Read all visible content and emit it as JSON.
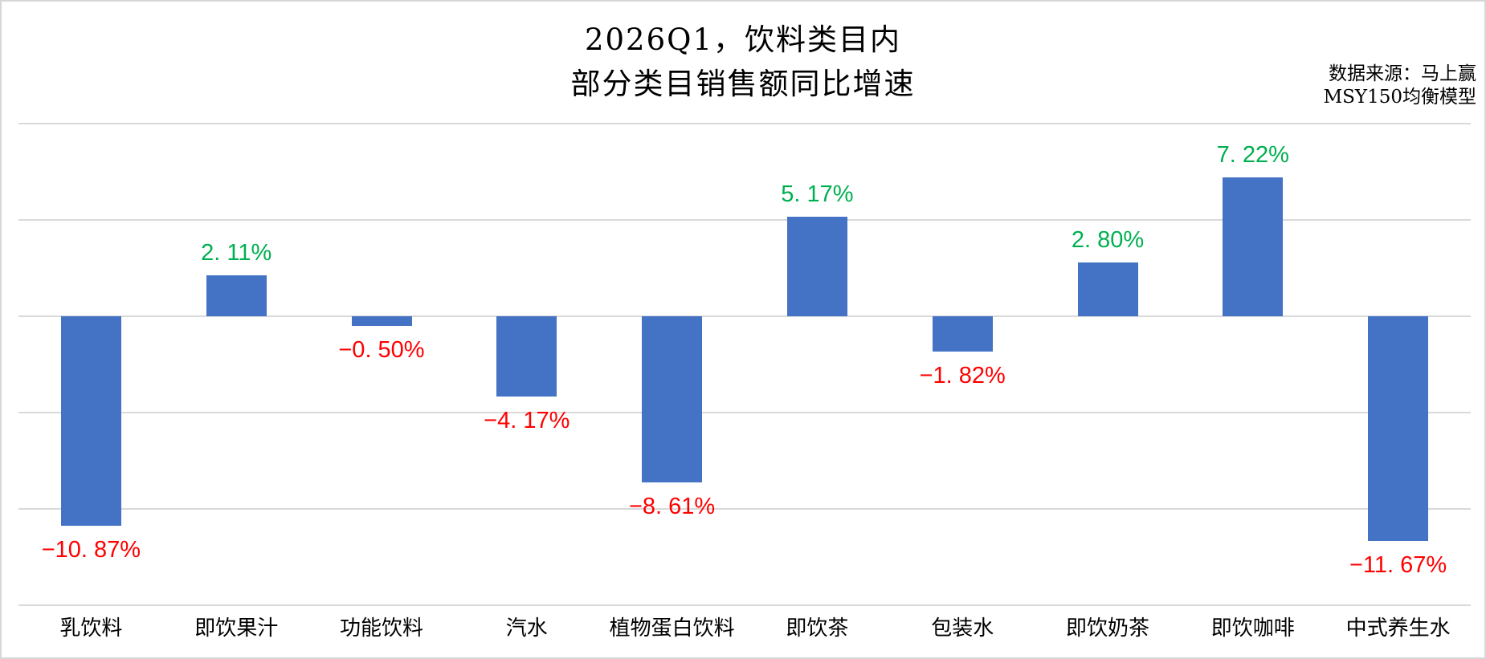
{
  "title": {
    "line1": "2026Q1，饮料类目内",
    "line2": "部分类目销售额同比增速"
  },
  "source": {
    "line1": "数据来源：马上赢",
    "line2": "MSY150均衡模型"
  },
  "chart_data": {
    "type": "bar",
    "title": "2026Q1，饮料类目内 部分类目销售额同比增速",
    "xlabel": "",
    "ylabel": "",
    "categories": [
      "乳饮料",
      "即饮果汁",
      "功能饮料",
      "汽水",
      "植物蛋白饮料",
      "即饮茶",
      "包装水",
      "即饮奶茶",
      "即饮咖啡",
      "中式养生水"
    ],
    "values": [
      -10.87,
      2.11,
      -0.5,
      -4.17,
      -8.61,
      5.17,
      -1.82,
      2.8,
      7.22,
      -11.67
    ],
    "value_labels": [
      "−10. 87%",
      "2. 11%",
      "−0. 50%",
      "−4. 17%",
      "−8. 61%",
      "5. 17%",
      "−1. 82%",
      "2. 80%",
      "7. 22%",
      "−11. 67%"
    ],
    "ylim": [
      -15,
      10
    ],
    "gridline_step_pct": 5,
    "grid": true,
    "legend": false,
    "colors": {
      "bar": "#4472C4",
      "positive_label": "#00B050",
      "negative_label": "#FF0000",
      "gridline": "#D9D9D9",
      "text": "#000000"
    }
  }
}
